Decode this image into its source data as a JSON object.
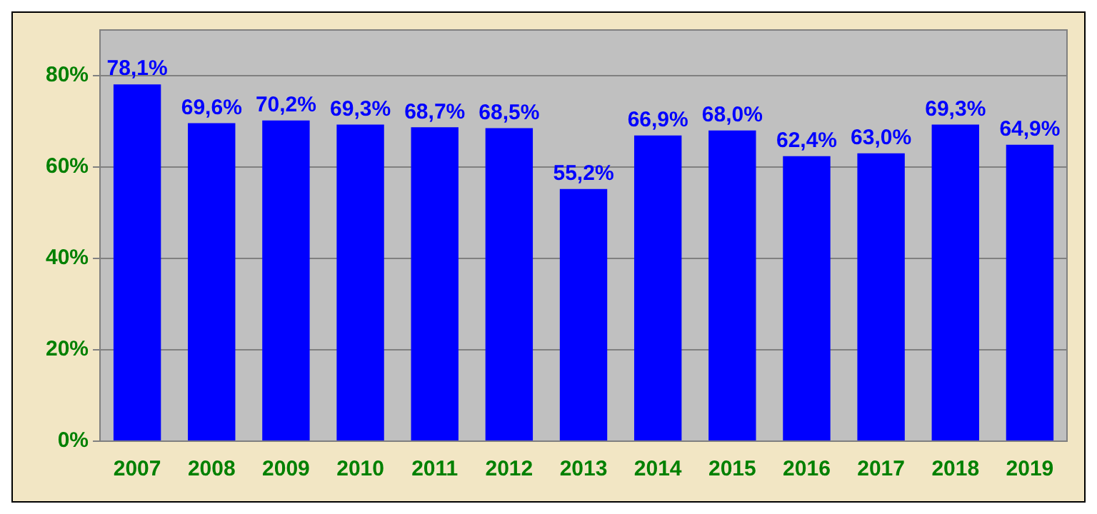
{
  "chart_data": {
    "type": "bar",
    "categories": [
      "2007",
      "2008",
      "2009",
      "2010",
      "2011",
      "2012",
      "2013",
      "2014",
      "2015",
      "2016",
      "2017",
      "2018",
      "2019"
    ],
    "values": [
      78.1,
      69.6,
      70.2,
      69.3,
      68.7,
      68.5,
      55.2,
      66.9,
      68.0,
      62.4,
      63.0,
      69.3,
      64.9
    ],
    "value_labels": [
      "78,1%",
      "69,6%",
      "70,2%",
      "69,3%",
      "68,7%",
      "68,5%",
      "55,2%",
      "66,9%",
      "68,0%",
      "62,4%",
      "63,0%",
      "69,3%",
      "64,9%"
    ],
    "color": "#0000ff",
    "ylim": [
      0,
      90
    ],
    "yticks": [
      {
        "value": 0,
        "label": "0%"
      },
      {
        "value": 20,
        "label": "20%"
      },
      {
        "value": 40,
        "label": "40%"
      },
      {
        "value": 60,
        "label": "60%"
      },
      {
        "value": 80,
        "label": "80%"
      }
    ],
    "grid": "y",
    "legend": false
  }
}
